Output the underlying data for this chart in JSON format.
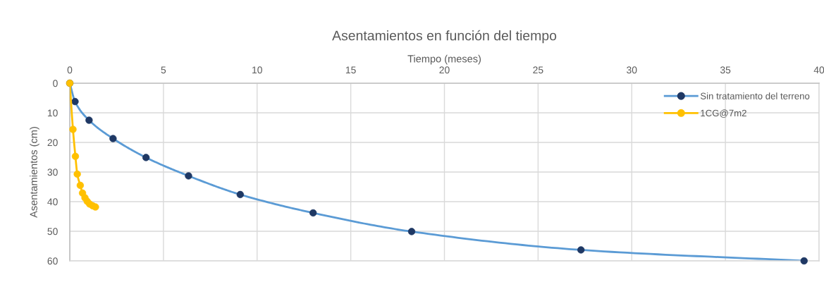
{
  "chart_data": {
    "type": "line",
    "title": "Asentamientos en función del tiempo",
    "xlabel": "Tiempo (meses)",
    "ylabel": "Asentamientos (cm)",
    "xlim": [
      0,
      40
    ],
    "xticks": [
      0,
      5,
      10,
      15,
      20,
      25,
      30,
      35,
      40
    ],
    "ylim": [
      60,
      0
    ],
    "yticks": [
      0,
      10,
      20,
      30,
      40,
      50,
      60
    ],
    "grid": true,
    "legend": "top right",
    "marker": "circle",
    "line_style": "solid",
    "series": [
      {
        "name": "Sin tratamiento del terreno",
        "color": "#5b9bd5",
        "colors": [
          "#1f3864",
          "#1f3864",
          "#1f3864",
          "#1f3864",
          "#1f3864",
          "#1f3864",
          "#1f3864",
          "#1f3864",
          "#1f3864",
          "#1f3864",
          "#1f3864"
        ],
        "x": [
          0,
          0.28,
          1.03,
          2.31,
          4.07,
          6.34,
          9.1,
          12.99,
          18.25,
          27.29,
          39.2
        ],
        "values": [
          0,
          6.2,
          12.5,
          18.7,
          25.1,
          31.3,
          37.6,
          43.8,
          50.1,
          56.3,
          60
        ]
      },
      {
        "name": "1CG@7m2",
        "color": "#ffc000",
        "x": [
          0,
          0.17,
          0.3,
          0.4,
          0.56,
          0.68,
          0.81,
          0.93,
          1.06,
          1.22,
          1.37
        ],
        "values": [
          0,
          15.6,
          24.7,
          30.7,
          34.5,
          37.1,
          38.7,
          39.9,
          40.8,
          41.4,
          41.8
        ]
      }
    ]
  }
}
